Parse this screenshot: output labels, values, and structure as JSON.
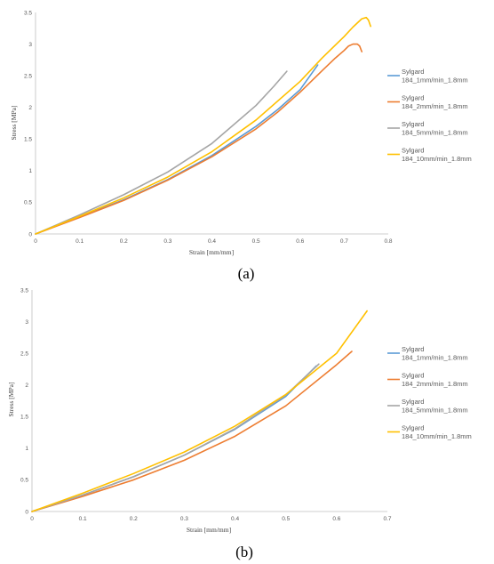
{
  "chart_data": [
    {
      "type": "line",
      "caption": "(a)",
      "xlabel": "Strain [mm/mm]",
      "ylabel": "Stress [MPa]",
      "xlim": [
        0,
        0.8
      ],
      "ylim": [
        0,
        3.5
      ],
      "xticks": [
        "0",
        "0.1",
        "0.2",
        "0.3",
        "0.4",
        "0.5",
        "0.6",
        "0.7",
        "0.8"
      ],
      "yticks": [
        "0",
        "0.5",
        "1",
        "1.5",
        "2",
        "2.5",
        "3",
        "3.5"
      ],
      "legend_position": "right",
      "series": [
        {
          "name": "Sylgard 184_1mm/min_1.8mm",
          "color": "#5b9bd5",
          "points": [
            [
              0,
              0
            ],
            [
              0.1,
              0.27
            ],
            [
              0.2,
              0.54
            ],
            [
              0.3,
              0.86
            ],
            [
              0.4,
              1.24
            ],
            [
              0.5,
              1.7
            ],
            [
              0.55,
              1.97
            ],
            [
              0.6,
              2.28
            ],
            [
              0.64,
              2.67
            ]
          ]
        },
        {
          "name": "Sylgard 184_2mm/min_1.8mm",
          "color": "#ed7d31",
          "points": [
            [
              0,
              0
            ],
            [
              0.1,
              0.26
            ],
            [
              0.2,
              0.53
            ],
            [
              0.3,
              0.85
            ],
            [
              0.4,
              1.22
            ],
            [
              0.5,
              1.66
            ],
            [
              0.55,
              1.93
            ],
            [
              0.6,
              2.24
            ],
            [
              0.65,
              2.58
            ],
            [
              0.68,
              2.78
            ],
            [
              0.7,
              2.9
            ],
            [
              0.71,
              2.97
            ],
            [
              0.72,
              3.0
            ],
            [
              0.73,
              3.0
            ],
            [
              0.735,
              2.97
            ],
            [
              0.74,
              2.88
            ]
          ]
        },
        {
          "name": "Sylgard 184_5mm/min_1.8mm",
          "color": "#a5a5a5",
          "points": [
            [
              0,
              0
            ],
            [
              0.1,
              0.3
            ],
            [
              0.2,
              0.62
            ],
            [
              0.3,
              0.98
            ],
            [
              0.4,
              1.43
            ],
            [
              0.5,
              2.03
            ],
            [
              0.54,
              2.33
            ],
            [
              0.57,
              2.57
            ]
          ]
        },
        {
          "name": "Sylgard 184_10mm/min_1.8mm",
          "color": "#ffc000",
          "points": [
            [
              0,
              0
            ],
            [
              0.1,
              0.28
            ],
            [
              0.2,
              0.57
            ],
            [
              0.3,
              0.9
            ],
            [
              0.4,
              1.3
            ],
            [
              0.5,
              1.8
            ],
            [
              0.6,
              2.41
            ],
            [
              0.65,
              2.78
            ],
            [
              0.7,
              3.12
            ],
            [
              0.72,
              3.27
            ],
            [
              0.74,
              3.4
            ],
            [
              0.75,
              3.42
            ],
            [
              0.755,
              3.38
            ],
            [
              0.76,
              3.28
            ]
          ]
        }
      ]
    },
    {
      "type": "line",
      "caption": "(b)",
      "xlabel": "Strain [mm/mm]",
      "ylabel": "Stress [MPa]",
      "xlim": [
        0,
        0.7
      ],
      "ylim": [
        0,
        3.5
      ],
      "xticks": [
        "0",
        "0.1",
        "0.2",
        "0.3",
        "0.4",
        "0.5",
        "0.6",
        "0.7"
      ],
      "yticks": [
        "0",
        "0.5",
        "1",
        "1.5",
        "2",
        "2.5",
        "3",
        "3.5"
      ],
      "legend_position": "right",
      "series": [
        {
          "name": "Sylgard 184_1mm/min_1.8mm",
          "color": "#5b9bd5",
          "points": [
            [
              0,
              0
            ],
            [
              0.1,
              0.26
            ],
            [
              0.2,
              0.55
            ],
            [
              0.3,
              0.89
            ],
            [
              0.4,
              1.3
            ],
            [
              0.5,
              1.82
            ],
            [
              0.56,
              2.3
            ]
          ]
        },
        {
          "name": "Sylgard 184_2mm/min_1.8mm",
          "color": "#ed7d31",
          "points": [
            [
              0,
              0
            ],
            [
              0.1,
              0.24
            ],
            [
              0.2,
              0.5
            ],
            [
              0.3,
              0.81
            ],
            [
              0.4,
              1.19
            ],
            [
              0.5,
              1.67
            ],
            [
              0.6,
              2.32
            ],
            [
              0.63,
              2.53
            ]
          ]
        },
        {
          "name": "Sylgard 184_5mm/min_1.8mm",
          "color": "#a5a5a5",
          "points": [
            [
              0,
              0
            ],
            [
              0.1,
              0.26
            ],
            [
              0.2,
              0.55
            ],
            [
              0.3,
              0.89
            ],
            [
              0.4,
              1.31
            ],
            [
              0.5,
              1.84
            ],
            [
              0.565,
              2.33
            ]
          ]
        },
        {
          "name": "Sylgard 184_10mm/min_1.8mm",
          "color": "#ffc000",
          "points": [
            [
              0,
              0
            ],
            [
              0.1,
              0.29
            ],
            [
              0.2,
              0.6
            ],
            [
              0.3,
              0.94
            ],
            [
              0.4,
              1.35
            ],
            [
              0.5,
              1.85
            ],
            [
              0.6,
              2.5
            ],
            [
              0.66,
              3.17
            ]
          ]
        }
      ]
    }
  ]
}
